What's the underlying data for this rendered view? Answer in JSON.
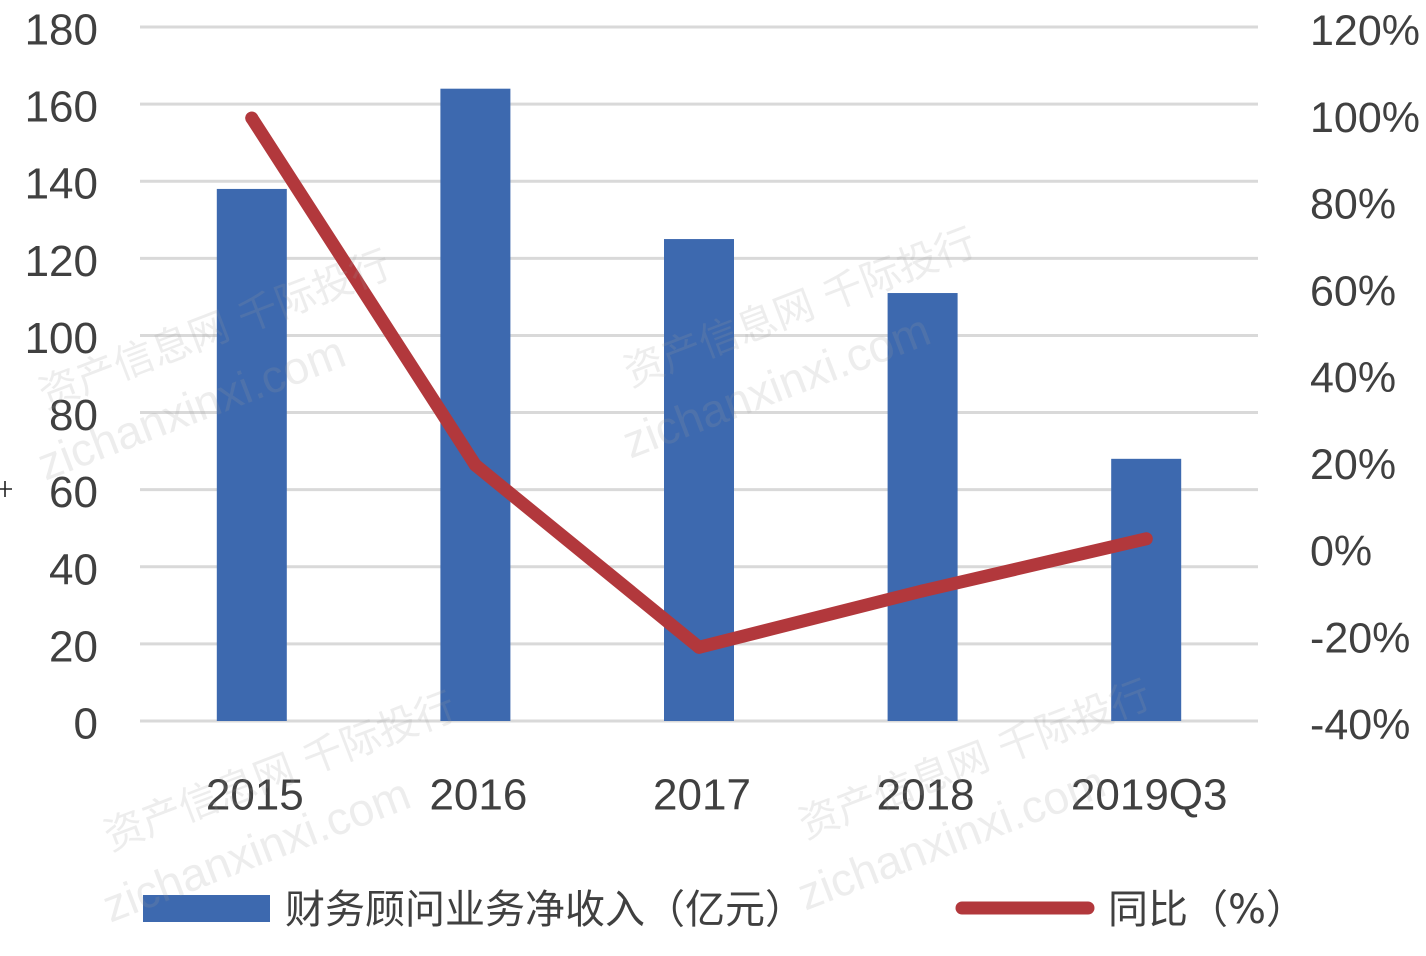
{
  "chart_data": {
    "type": "bar",
    "categories": [
      "2015",
      "2016",
      "2017",
      "2018",
      "2019Q3"
    ],
    "series": [
      {
        "name": "财务顾问业务净收入（亿元）",
        "type": "bar",
        "axis": "left",
        "values": [
          138,
          164,
          125,
          111,
          68
        ],
        "color": "#3D69AF"
      },
      {
        "name": "同比（%）",
        "type": "line",
        "axis": "right",
        "values": [
          99,
          19,
          -23,
          -10,
          2
        ],
        "color": "#B2383C"
      }
    ],
    "y_left": {
      "min": 0,
      "max": 180,
      "ticks": [
        0,
        20,
        40,
        60,
        80,
        100,
        120,
        140,
        160,
        180
      ],
      "tick_labels": [
        "0",
        "20",
        "40",
        "60",
        "80",
        "100",
        "120",
        "140",
        "160",
        "180"
      ]
    },
    "y_right": {
      "min": -40,
      "max": 120,
      "ticks": [
        -40,
        -20,
        0,
        20,
        40,
        60,
        80,
        100,
        120
      ],
      "tick_labels": [
        "-40%",
        "-20%",
        "0%",
        "20%",
        "40%",
        "60%",
        "80%",
        "100%",
        "120%"
      ]
    },
    "grid": true,
    "gridline_color": "#D9D9D9",
    "text_color": "#404040",
    "legend": "bottom"
  },
  "watermark": {
    "line1": "资产信息网 千际投行",
    "line2": "zichanxinxi.com"
  }
}
